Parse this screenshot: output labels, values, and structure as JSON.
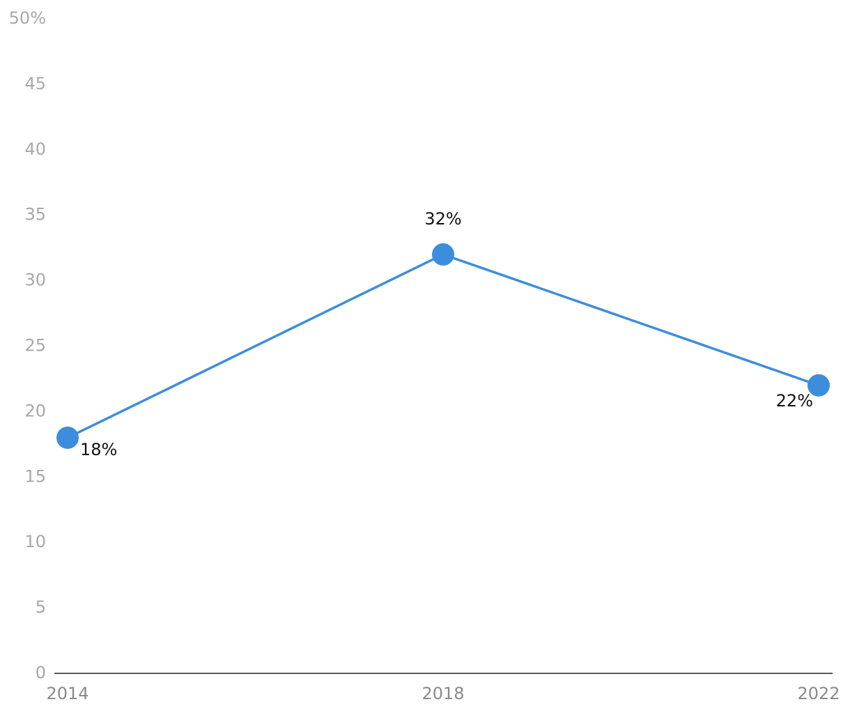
{
  "chart_data": {
    "type": "line",
    "categories": [
      "2014",
      "2018",
      "2022"
    ],
    "series": [
      {
        "color": "#3d8ddd",
        "values": [
          18,
          32,
          22
        ],
        "value_labels": [
          "18%",
          "32%",
          "22%"
        ]
      }
    ],
    "ylim": [
      0,
      50
    ],
    "yticks": [
      0,
      5,
      10,
      15,
      20,
      25,
      30,
      35,
      40,
      45,
      {
        "value": 50,
        "label": "50%"
      }
    ],
    "grid": false
  }
}
